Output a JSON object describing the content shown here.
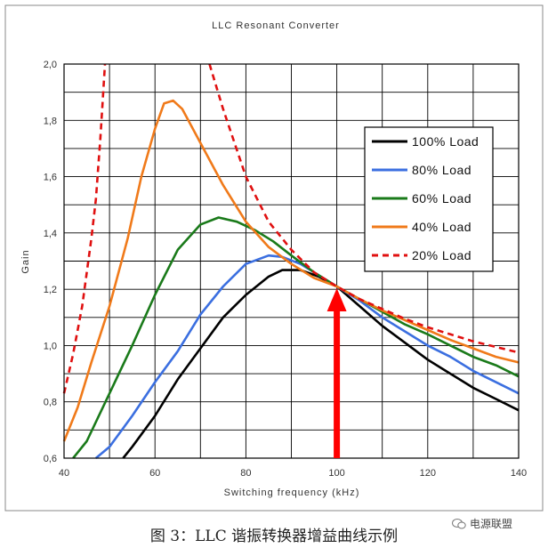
{
  "chart_data": {
    "type": "line",
    "title": "LLC Resonant Converter",
    "xlabel": "Switching frequency (kHz)",
    "ylabel": "Gain",
    "xlim": [
      40,
      140
    ],
    "ylim": [
      0.6,
      2.0
    ],
    "x_ticks": [
      "40",
      "60",
      "80",
      "100",
      "120",
      "140"
    ],
    "y_ticks": [
      "0,6",
      "0,8",
      "1,0",
      "1,2",
      "1,4",
      "1,6",
      "1,8",
      "2,0"
    ],
    "grid": true,
    "legend_position": "top-right",
    "series": [
      {
        "name": "100% Load",
        "color": "#000000",
        "dash": false,
        "points": [
          [
            53,
            0.6
          ],
          [
            55,
            0.64
          ],
          [
            60,
            0.75
          ],
          [
            65,
            0.88
          ],
          [
            70,
            0.99
          ],
          [
            75,
            1.1
          ],
          [
            80,
            1.18
          ],
          [
            85,
            1.245
          ],
          [
            88,
            1.268
          ],
          [
            92,
            1.268
          ],
          [
            96,
            1.245
          ],
          [
            100,
            1.21
          ],
          [
            105,
            1.14
          ],
          [
            110,
            1.07
          ],
          [
            115,
            1.01
          ],
          [
            120,
            0.95
          ],
          [
            125,
            0.9
          ],
          [
            130,
            0.85
          ],
          [
            135,
            0.81
          ],
          [
            140,
            0.77
          ]
        ]
      },
      {
        "name": "80% Load",
        "color": "#3b6fe0",
        "dash": false,
        "points": [
          [
            47,
            0.6
          ],
          [
            50,
            0.64
          ],
          [
            55,
            0.75
          ],
          [
            60,
            0.87
          ],
          [
            65,
            0.98
          ],
          [
            70,
            1.11
          ],
          [
            75,
            1.21
          ],
          [
            80,
            1.29
          ],
          [
            85,
            1.32
          ],
          [
            88,
            1.315
          ],
          [
            92,
            1.29
          ],
          [
            96,
            1.25
          ],
          [
            100,
            1.21
          ],
          [
            105,
            1.16
          ],
          [
            110,
            1.1
          ],
          [
            115,
            1.05
          ],
          [
            120,
            1.0
          ],
          [
            125,
            0.96
          ],
          [
            130,
            0.91
          ],
          [
            135,
            0.87
          ],
          [
            140,
            0.83
          ]
        ]
      },
      {
        "name": "60% Load",
        "color": "#1a7a1a",
        "dash": false,
        "points": [
          [
            42,
            0.6
          ],
          [
            45,
            0.66
          ],
          [
            50,
            0.83
          ],
          [
            55,
            1.0
          ],
          [
            60,
            1.18
          ],
          [
            65,
            1.34
          ],
          [
            70,
            1.43
          ],
          [
            74,
            1.455
          ],
          [
            78,
            1.44
          ],
          [
            82,
            1.41
          ],
          [
            86,
            1.37
          ],
          [
            90,
            1.32
          ],
          [
            95,
            1.26
          ],
          [
            100,
            1.21
          ],
          [
            105,
            1.165
          ],
          [
            110,
            1.12
          ],
          [
            115,
            1.075
          ],
          [
            120,
            1.04
          ],
          [
            125,
            1.0
          ],
          [
            130,
            0.96
          ],
          [
            135,
            0.93
          ],
          [
            140,
            0.89
          ]
        ]
      },
      {
        "name": "40% Load",
        "color": "#f07a1a",
        "dash": false,
        "points": [
          [
            40,
            0.66
          ],
          [
            43,
            0.78
          ],
          [
            46,
            0.94
          ],
          [
            50,
            1.14
          ],
          [
            54,
            1.38
          ],
          [
            57,
            1.6
          ],
          [
            60,
            1.77
          ],
          [
            62,
            1.86
          ],
          [
            64,
            1.87
          ],
          [
            66,
            1.84
          ],
          [
            70,
            1.72
          ],
          [
            75,
            1.57
          ],
          [
            80,
            1.44
          ],
          [
            85,
            1.35
          ],
          [
            90,
            1.29
          ],
          [
            95,
            1.24
          ],
          [
            100,
            1.21
          ],
          [
            105,
            1.165
          ],
          [
            110,
            1.125
          ],
          [
            115,
            1.09
          ],
          [
            120,
            1.055
          ],
          [
            125,
            1.02
          ],
          [
            130,
            0.99
          ],
          [
            135,
            0.96
          ],
          [
            140,
            0.94
          ]
        ]
      },
      {
        "name": "20% Load",
        "color": "#e01010",
        "dash": true,
        "points": [
          [
            40,
            0.83
          ],
          [
            42,
            0.97
          ],
          [
            44,
            1.14
          ],
          [
            46,
            1.38
          ],
          [
            47,
            1.52
          ],
          [
            48,
            1.74
          ],
          [
            49,
            2.0
          ]
        ]
      },
      {
        "name": "",
        "color": "#e01010",
        "dash": true,
        "points": [
          [
            72,
            2.0
          ],
          [
            75,
            1.84
          ],
          [
            80,
            1.6
          ],
          [
            85,
            1.44
          ],
          [
            90,
            1.34
          ],
          [
            95,
            1.26
          ],
          [
            100,
            1.21
          ],
          [
            105,
            1.165
          ],
          [
            110,
            1.13
          ],
          [
            115,
            1.095
          ],
          [
            120,
            1.065
          ],
          [
            125,
            1.04
          ],
          [
            130,
            1.015
          ],
          [
            135,
            0.995
          ],
          [
            140,
            0.975
          ]
        ]
      }
    ],
    "annotations": [
      {
        "type": "arrow",
        "color": "#ff0000",
        "from": [
          100,
          0.6
        ],
        "to": [
          100,
          1.21
        ]
      }
    ]
  },
  "caption": "图 3：LLC 谐振转换器增益曲线示例",
  "watermark": "电源联盟"
}
